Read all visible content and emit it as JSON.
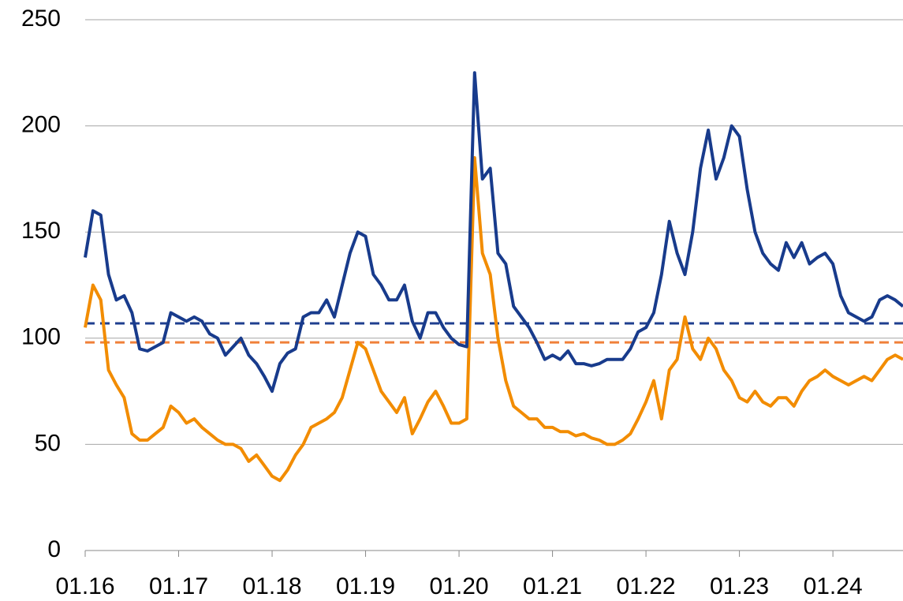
{
  "chart_data": {
    "type": "line",
    "categories": [
      "01.16",
      null,
      null,
      null,
      null,
      null,
      null,
      null,
      null,
      null,
      null,
      null,
      "01.17",
      null,
      null,
      null,
      null,
      null,
      null,
      null,
      null,
      null,
      null,
      null,
      "01.18",
      null,
      null,
      null,
      null,
      null,
      null,
      null,
      null,
      null,
      null,
      null,
      "01.19",
      null,
      null,
      null,
      null,
      null,
      null,
      null,
      null,
      null,
      null,
      null,
      "01.20",
      null,
      null,
      null,
      null,
      null,
      null,
      null,
      null,
      null,
      null,
      null,
      "01.21",
      null,
      null,
      null,
      null,
      null,
      null,
      null,
      null,
      null,
      null,
      null,
      "01.22",
      null,
      null,
      null,
      null,
      null,
      null,
      null,
      null,
      null,
      null,
      null,
      "01.23",
      null,
      null,
      null,
      null,
      null,
      null,
      null,
      null,
      null,
      null,
      null,
      "01.24",
      null,
      null,
      null,
      null,
      null,
      null,
      null,
      null,
      null
    ],
    "series": [
      {
        "color": "#f28c00",
        "values": [
          105,
          125,
          118,
          85,
          78,
          72,
          55,
          52,
          52,
          55,
          58,
          68,
          65,
          60,
          62,
          58,
          55,
          52,
          50,
          50,
          48,
          42,
          45,
          40,
          35,
          33,
          38,
          45,
          50,
          58,
          60,
          62,
          65,
          72,
          85,
          98,
          95,
          85,
          75,
          70,
          65,
          72,
          55,
          62,
          70,
          75,
          68,
          60,
          60,
          62,
          185,
          140,
          130,
          100,
          80,
          68,
          65,
          62,
          62,
          58,
          58,
          56,
          56,
          54,
          55,
          53,
          52,
          50,
          50,
          52,
          55,
          62,
          70,
          80,
          62,
          85,
          90,
          110,
          95,
          90,
          100,
          95,
          85,
          80,
          72,
          70,
          75,
          70,
          68,
          72,
          72,
          68,
          75,
          80,
          82,
          85,
          82,
          80,
          78,
          80,
          82,
          80,
          85,
          90,
          92,
          90
        ]
      },
      {
        "color": "#183b8c",
        "values": [
          138,
          160,
          158,
          130,
          118,
          120,
          112,
          95,
          94,
          96,
          98,
          112,
          110,
          108,
          110,
          108,
          102,
          100,
          92,
          96,
          100,
          92,
          88,
          82,
          75,
          88,
          93,
          95,
          110,
          112,
          112,
          118,
          110,
          125,
          140,
          150,
          148,
          130,
          125,
          118,
          118,
          125,
          108,
          100,
          112,
          112,
          105,
          100,
          97,
          96,
          225,
          175,
          180,
          140,
          135,
          115,
          110,
          105,
          98,
          90,
          92,
          90,
          94,
          88,
          88,
          87,
          88,
          90,
          90,
          90,
          95,
          103,
          105,
          112,
          130,
          155,
          140,
          130,
          150,
          180,
          198,
          175,
          185,
          200,
          195,
          170,
          150,
          140,
          135,
          132,
          145,
          138,
          145,
          135,
          138,
          140,
          135,
          120,
          112,
          110,
          108,
          110,
          118,
          120,
          118,
          115
        ]
      }
    ],
    "reference_lines": [
      {
        "value": 107,
        "color": "#1f3f8f"
      },
      {
        "value": 98,
        "color": "#f0803a"
      }
    ],
    "ylim": [
      0,
      250
    ],
    "yticks": [
      0,
      50,
      100,
      150,
      200,
      250
    ],
    "grid": true
  }
}
